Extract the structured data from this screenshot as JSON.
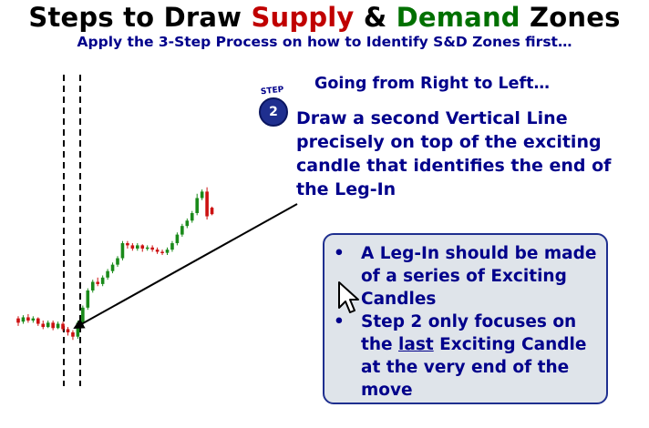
{
  "title": {
    "part1": "Steps to Draw ",
    "supply": "Supply",
    "part2": " & ",
    "demand": "Demand",
    "part3": " Zones"
  },
  "subtitle": "Apply the 3-Step Process on how to Identify S&D Zones first…",
  "direction_text": "Going from Right to Left…",
  "step_badge": {
    "word": "STEP",
    "number": "2"
  },
  "step_text": "Draw a second Vertical Line precisely on top of the exciting candle that identifies the end of the Leg-In",
  "info_box": {
    "bullet": "•",
    "item1": "A Leg-In should be made of a series of Exciting Candles",
    "item2_pre": "Step 2 only focuses on the ",
    "item2_em": "last",
    "item2_post": " Exciting Candle at the very end of the move"
  },
  "colors": {
    "bull": "#1a8a1a",
    "bear": "#cc1111",
    "title_supply": "#c00000",
    "title_demand": "#007000",
    "text": "#00008b"
  },
  "icons": {
    "cursor": "mouse-pointer-icon"
  },
  "chart_data": {
    "type": "candlestick",
    "candles": [
      [
        "bear",
        102,
        98,
        104,
        95
      ],
      [
        "bull",
        99,
        103,
        105,
        97
      ],
      [
        "bear",
        103,
        100,
        106,
        98
      ],
      [
        "bull",
        100,
        102,
        104,
        98
      ],
      [
        "bear",
        102,
        97,
        103,
        95
      ],
      [
        "bear",
        97,
        94,
        100,
        92
      ],
      [
        "bull",
        94,
        98,
        100,
        93
      ],
      [
        "bear",
        98,
        93,
        100,
        91
      ],
      [
        "bull",
        93,
        97,
        99,
        92
      ],
      [
        "bear",
        97,
        92,
        99,
        90
      ],
      [
        "bear",
        92,
        89,
        94,
        86
      ],
      [
        "bear",
        89,
        85,
        91,
        82
      ],
      [
        "bull",
        85,
        98,
        100,
        83
      ],
      [
        "bull",
        98,
        112,
        114,
        96
      ],
      [
        "bull",
        112,
        128,
        130,
        110
      ],
      [
        "bull",
        128,
        136,
        138,
        126
      ],
      [
        "bear",
        136,
        134,
        140,
        132
      ],
      [
        "bull",
        134,
        140,
        142,
        132
      ],
      [
        "bull",
        140,
        146,
        148,
        138
      ],
      [
        "bull",
        146,
        152,
        154,
        144
      ],
      [
        "bull",
        152,
        158,
        160,
        150
      ],
      [
        "bull",
        158,
        172,
        174,
        156
      ],
      [
        "bear",
        172,
        170,
        174,
        167
      ],
      [
        "bear",
        170,
        167,
        172,
        165
      ],
      [
        "bull",
        167,
        170,
        172,
        165
      ],
      [
        "bear",
        170,
        167,
        171,
        164
      ],
      [
        "bull",
        167,
        168,
        170,
        165
      ],
      [
        "bear",
        168,
        166,
        170,
        164
      ],
      [
        "bear",
        166,
        164,
        168,
        162
      ],
      [
        "bear",
        164,
        163,
        166,
        161
      ],
      [
        "bull",
        163,
        166,
        168,
        161
      ],
      [
        "bull",
        166,
        172,
        174,
        164
      ],
      [
        "bull",
        172,
        180,
        182,
        170
      ],
      [
        "bull",
        180,
        188,
        190,
        178
      ],
      [
        "bull",
        188,
        193,
        195,
        186
      ],
      [
        "bull",
        193,
        200,
        202,
        191
      ],
      [
        "bull",
        200,
        214,
        218,
        198
      ],
      [
        "bull",
        214,
        220,
        222,
        212
      ],
      [
        "bear",
        220,
        197,
        224,
        194
      ],
      [
        "bear",
        205,
        199,
        206,
        198
      ]
    ]
  }
}
